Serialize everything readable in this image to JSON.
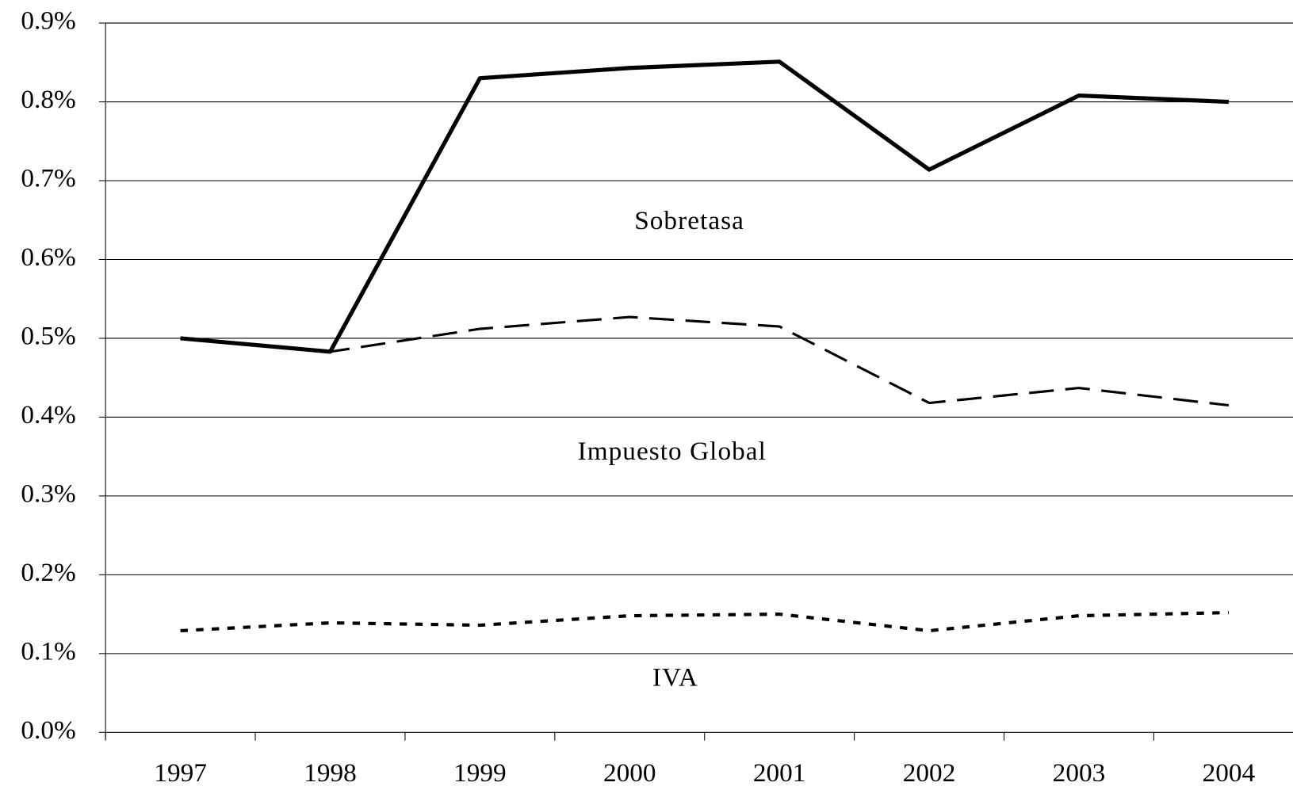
{
  "chart_data": {
    "type": "line",
    "categories": [
      "1997",
      "1998",
      "1999",
      "2000",
      "2001",
      "2002",
      "2003",
      "2004"
    ],
    "series": [
      {
        "name": "Sobretasa",
        "color": "#000000",
        "values": [
          0.5,
          0.483,
          0.83,
          0.843,
          0.851,
          0.714,
          0.808,
          0.8
        ]
      },
      {
        "name": "Impuesto Global",
        "color": "#000000",
        "values": [
          0.5,
          0.483,
          0.512,
          0.527,
          0.515,
          0.418,
          0.437,
          0.415
        ]
      },
      {
        "name": "IVA",
        "color": "#000000",
        "values": [
          0.129,
          0.139,
          0.136,
          0.148,
          0.15,
          0.129,
          0.148,
          0.152
        ]
      }
    ],
    "ylim": [
      0,
      0.9
    ],
    "yticks": [
      {
        "value": 0,
        "label": "0.0%"
      },
      {
        "value": 0.1,
        "label": "0.1%"
      },
      {
        "value": 0.2,
        "label": "0.2%"
      },
      {
        "value": 0.3,
        "label": "0.3%"
      },
      {
        "value": 0.4,
        "label": "0.4%"
      },
      {
        "value": 0.5,
        "label": "0.5%"
      },
      {
        "value": 0.6,
        "label": "0.6%"
      },
      {
        "value": 0.7,
        "label": "0.7%"
      },
      {
        "value": 0.8,
        "label": "0.8%"
      },
      {
        "value": 0.9,
        "label": "0.9%"
      }
    ],
    "grid": true
  }
}
